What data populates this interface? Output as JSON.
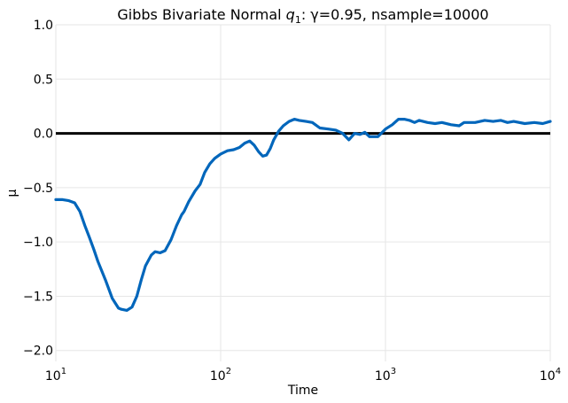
{
  "chart_data": {
    "type": "line",
    "title_parts": {
      "prefix": "Gibbs Bivariate Normal ",
      "var": "q",
      "sub": "1",
      "suffix": ": γ=0.95, nsample=10000"
    },
    "xlabel": "Time",
    "ylabel": "μ",
    "xscale": "log",
    "xlim": [
      10,
      10000
    ],
    "ylim": [
      -2.1,
      1.0
    ],
    "xticks": [
      {
        "value": 10,
        "base": "10",
        "exp": "1"
      },
      {
        "value": 100,
        "base": "10",
        "exp": "2"
      },
      {
        "value": 1000,
        "base": "10",
        "exp": "3"
      },
      {
        "value": 10000,
        "base": "10",
        "exp": "4"
      }
    ],
    "yticks": [
      {
        "value": 1.0,
        "label": "1.0"
      },
      {
        "value": 0.5,
        "label": "0.5"
      },
      {
        "value": 0.0,
        "label": "0.0"
      },
      {
        "value": -0.5,
        "label": "−0.5"
      },
      {
        "value": -1.0,
        "label": "−1.0"
      },
      {
        "value": -1.5,
        "label": "−1.5"
      },
      {
        "value": -2.0,
        "label": "−2.0"
      }
    ],
    "grid": true,
    "reference_line": {
      "y": 0.0,
      "color": "#000000"
    },
    "series": [
      {
        "color": "#0066bb",
        "x": [
          10,
          11,
          12,
          13,
          14,
          15,
          16,
          17,
          18,
          20,
          22,
          24,
          25,
          27,
          29,
          31,
          33,
          35,
          38,
          40,
          43,
          46,
          50,
          54,
          58,
          60,
          64,
          70,
          75,
          80,
          86,
          92,
          100,
          110,
          120,
          130,
          140,
          150,
          160,
          170,
          180,
          190,
          200,
          210,
          225,
          240,
          260,
          280,
          300,
          330,
          360,
          400,
          450,
          500,
          550,
          600,
          650,
          700,
          750,
          800,
          850,
          900,
          1000,
          1100,
          1200,
          1300,
          1400,
          1500,
          1600,
          1800,
          2000,
          2200,
          2500,
          2800,
          3000,
          3500,
          4000,
          4500,
          5000,
          5500,
          6000,
          7000,
          8000,
          9000,
          10000
        ],
        "y": [
          -0.61,
          -0.61,
          -0.62,
          -0.64,
          -0.72,
          -0.85,
          -0.96,
          -1.07,
          -1.18,
          -1.35,
          -1.52,
          -1.61,
          -1.62,
          -1.63,
          -1.6,
          -1.5,
          -1.35,
          -1.22,
          -1.12,
          -1.09,
          -1.1,
          -1.08,
          -0.98,
          -0.85,
          -0.75,
          -0.72,
          -0.63,
          -0.53,
          -0.47,
          -0.36,
          -0.28,
          -0.23,
          -0.19,
          -0.16,
          -0.15,
          -0.13,
          -0.09,
          -0.07,
          -0.11,
          -0.17,
          -0.21,
          -0.2,
          -0.14,
          -0.06,
          0.02,
          0.07,
          0.11,
          0.13,
          0.12,
          0.11,
          0.1,
          0.05,
          0.04,
          0.03,
          0.0,
          -0.06,
          0.0,
          -0.01,
          0.01,
          -0.03,
          -0.03,
          -0.03,
          0.04,
          0.08,
          0.13,
          0.13,
          0.12,
          0.1,
          0.12,
          0.1,
          0.09,
          0.1,
          0.08,
          0.07,
          0.1,
          0.1,
          0.12,
          0.11,
          0.12,
          0.1,
          0.11,
          0.09,
          0.1,
          0.09,
          0.11
        ]
      }
    ]
  }
}
